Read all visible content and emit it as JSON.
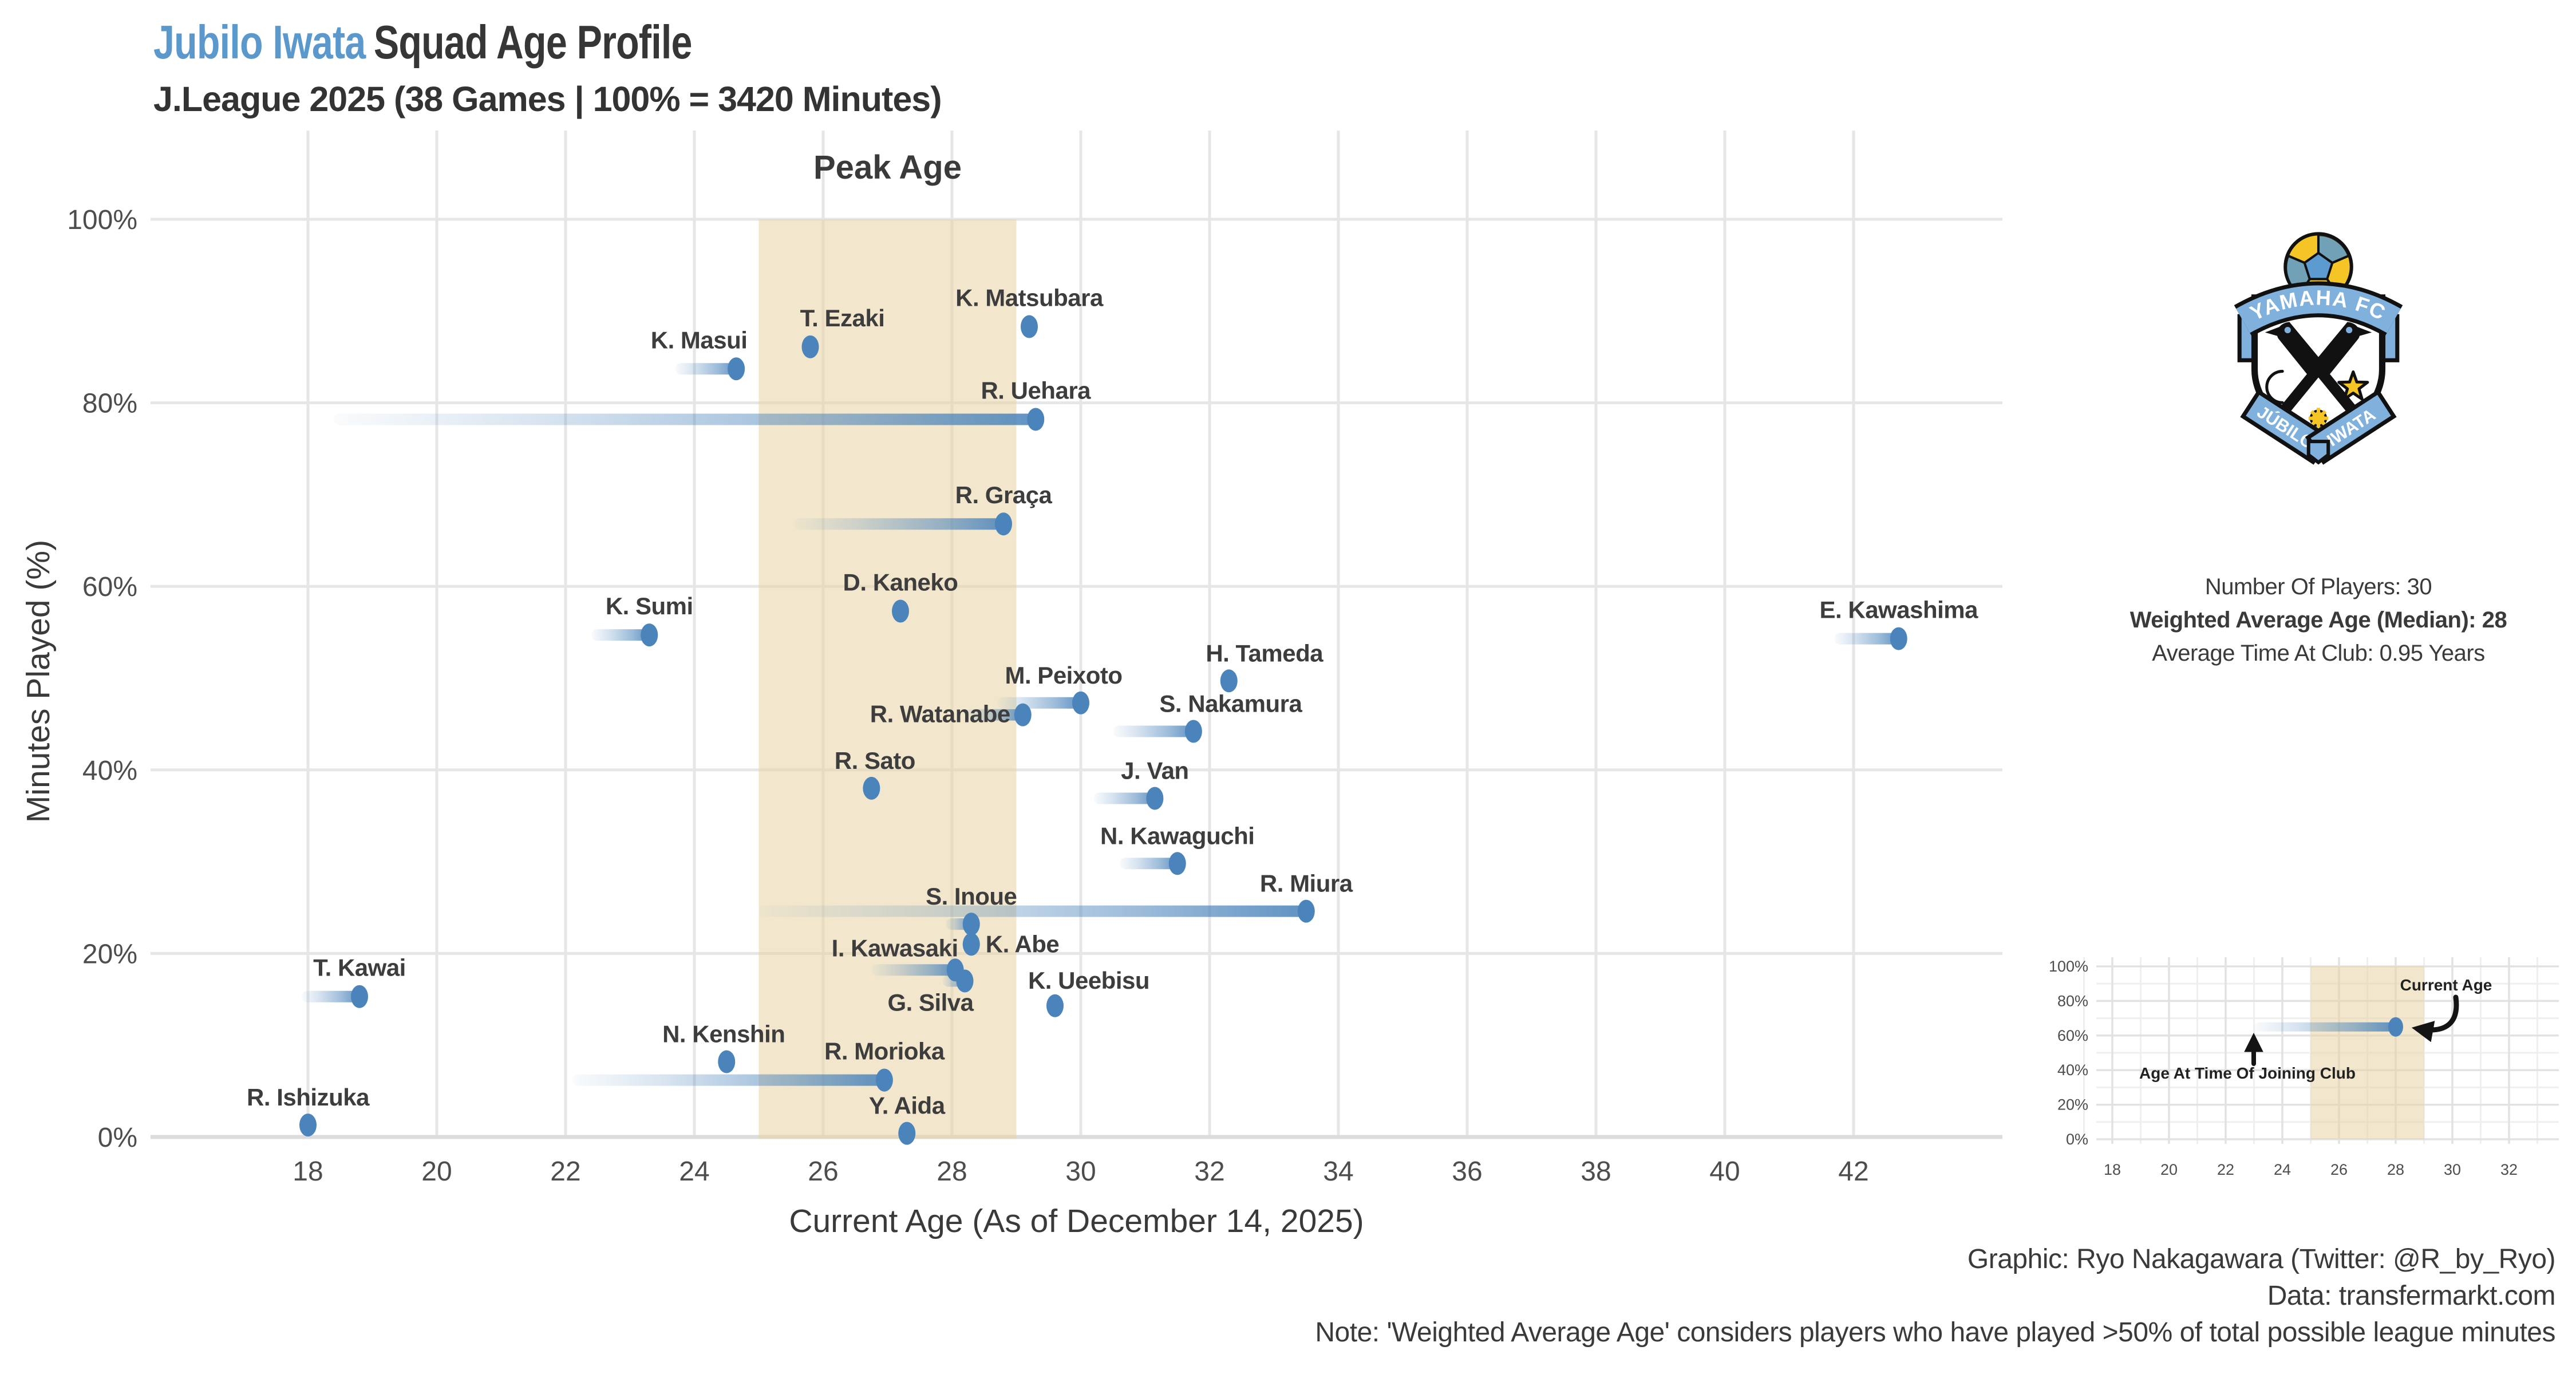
{
  "header": {
    "team": "Jubilo Iwata",
    "title": "Squad Age Profile",
    "subtitle": "J.League 2025 (38 Games | 100% = 3420 Minutes)"
  },
  "crest": {
    "top_banner": "YAMAHA FC",
    "ribbon_left": "JÚBILO",
    "ribbon_right": "IWATA"
  },
  "stats": {
    "players": "Number Of Players: 30",
    "avg_age": "Weighted Average Age (Median): 28",
    "avg_time": "Average Time At Club: 0.95 Years"
  },
  "footer": {
    "credit": "Graphic: Ryo Nakagawara (Twitter: @R_by_Ryo)",
    "source": "Data: transfermarkt.com",
    "note": "Note: 'Weighted Average Age' considers players who have played >50% of total possible league minutes"
  },
  "chart_data": {
    "type": "scatter",
    "title": "Jubilo Iwata Squad Age Profile",
    "xlabel": "Current Age (As of December 14, 2025)",
    "ylabel": "Minutes Played (%)",
    "x_ticks": [
      18,
      20,
      22,
      24,
      26,
      28,
      30,
      32,
      34,
      36,
      38,
      40,
      42
    ],
    "y_ticks": [
      0,
      20,
      40,
      60,
      80,
      100
    ],
    "xlim": [
      15.5,
      44.4
    ],
    "ylim": [
      0,
      103
    ],
    "grid": "major-only",
    "legend": "none",
    "peak_age_band": {
      "label": "Peak Age",
      "from": 25,
      "to": 29
    },
    "colors": {
      "dot": "#4b84bb",
      "band": "#e7d3a2",
      "grid": "#e6e6e6",
      "zero_line": "#dcdcdc",
      "title_accent": "#5b99cc"
    },
    "players": [
      {
        "name": "R. Ishizuka",
        "age": 18.0,
        "pct": 1.3,
        "join_age": null,
        "label": {
          "anchor": "middle",
          "ox": 0,
          "oy": -34
        }
      },
      {
        "name": "T. Kawai",
        "age": 18.8,
        "pct": 15.3,
        "join_age": 17.9,
        "label": {
          "anchor": "middle",
          "ox": 0,
          "oy": -36
        }
      },
      {
        "name": "K. Sumi",
        "age": 23.3,
        "pct": 54.7,
        "join_age": 22.4,
        "label": {
          "anchor": "middle",
          "ox": 0,
          "oy": -36
        }
      },
      {
        "name": "N. Kenshin",
        "age": 24.5,
        "pct": 8.2,
        "join_age": null,
        "label": {
          "anchor": "middle",
          "ox": -5,
          "oy": -34
        }
      },
      {
        "name": "K. Masui",
        "age": 24.65,
        "pct": 83.7,
        "join_age": 23.7,
        "label": {
          "anchor": "middle",
          "ox": -65,
          "oy": -36
        }
      },
      {
        "name": "T. Ezaki",
        "age": 25.8,
        "pct": 86.1,
        "join_age": null,
        "label": {
          "anchor": "middle",
          "ox": 56,
          "oy": -36
        }
      },
      {
        "name": "R. Sato",
        "age": 26.75,
        "pct": 38.0,
        "join_age": null,
        "label": {
          "anchor": "middle",
          "ox": 6,
          "oy": -34
        }
      },
      {
        "name": "R. Morioka",
        "age": 26.95,
        "pct": 6.2,
        "join_age": 22.1,
        "label": {
          "anchor": "middle",
          "ox": 0,
          "oy": -36
        }
      },
      {
        "name": "D. Kaneko",
        "age": 27.2,
        "pct": 57.3,
        "join_age": null,
        "label": {
          "anchor": "middle",
          "ox": 0,
          "oy": -36
        }
      },
      {
        "name": "Y. Aida",
        "age": 27.3,
        "pct": 0.4,
        "join_age": null,
        "label": {
          "anchor": "middle",
          "ox": 0,
          "oy": -34
        }
      },
      {
        "name": "I. Kawasaki",
        "age": 28.05,
        "pct": 18.2,
        "join_age": 26.75,
        "label": {
          "anchor": "end",
          "ox": 5,
          "oy": -24
        }
      },
      {
        "name": "G. Silva",
        "age": 28.2,
        "pct": 17.0,
        "join_age": 27.85,
        "label": {
          "anchor": "middle",
          "ox": -60,
          "oy": 52
        }
      },
      {
        "name": "S. Inoue",
        "age": 28.3,
        "pct": 23.2,
        "join_age": 27.9,
        "label": {
          "anchor": "middle",
          "ox": 0,
          "oy": -34
        }
      },
      {
        "name": "K. Abe",
        "age": 28.3,
        "pct": 21.0,
        "join_age": null,
        "label": {
          "anchor": "start",
          "ox": 25,
          "oy": 14
        }
      },
      {
        "name": "R. Graça",
        "age": 28.8,
        "pct": 66.8,
        "join_age": 25.55,
        "label": {
          "anchor": "middle",
          "ox": 0,
          "oy": -36
        }
      },
      {
        "name": "R. Watanabe",
        "age": 29.1,
        "pct": 46.0,
        "join_age": 28.2,
        "label": {
          "anchor": "end",
          "ox": -22,
          "oy": 13
        }
      },
      {
        "name": "K. Matsubara",
        "age": 29.2,
        "pct": 88.3,
        "join_age": null,
        "label": {
          "anchor": "middle",
          "ox": 0,
          "oy": -36
        }
      },
      {
        "name": "R. Uehara",
        "age": 29.3,
        "pct": 78.2,
        "join_age": 18.4,
        "label": {
          "anchor": "middle",
          "ox": 0,
          "oy": -36
        }
      },
      {
        "name": "K. Ueebisu",
        "age": 29.6,
        "pct": 14.3,
        "join_age": null,
        "label": {
          "anchor": "middle",
          "ox": 59,
          "oy": -30
        }
      },
      {
        "name": "M. Peixoto",
        "age": 30.0,
        "pct": 47.3,
        "join_age": 28.7,
        "label": {
          "anchor": "middle",
          "ox": -30,
          "oy": -34
        }
      },
      {
        "name": "J. Van",
        "age": 31.15,
        "pct": 36.9,
        "join_age": 30.2,
        "label": {
          "anchor": "middle",
          "ox": 0,
          "oy": -34
        }
      },
      {
        "name": "N. Kawaguchi",
        "age": 31.5,
        "pct": 29.8,
        "join_age": 30.6,
        "label": {
          "anchor": "middle",
          "ox": 0,
          "oy": -34
        }
      },
      {
        "name": "S. Nakamura",
        "age": 31.75,
        "pct": 44.2,
        "join_age": 30.5,
        "label": {
          "anchor": "middle",
          "ox": 65,
          "oy": -34
        }
      },
      {
        "name": "H. Tameda",
        "age": 32.3,
        "pct": 49.7,
        "join_age": null,
        "label": {
          "anchor": "middle",
          "ox": 62,
          "oy": -34
        }
      },
      {
        "name": "R. Miura",
        "age": 33.5,
        "pct": 24.6,
        "join_age": 25.0,
        "label": {
          "anchor": "middle",
          "ox": 0,
          "oy": -34
        }
      },
      {
        "name": "E. Kawashima",
        "age": 42.7,
        "pct": 54.3,
        "join_age": 41.7,
        "label": {
          "anchor": "middle",
          "ox": 0,
          "oy": -36
        }
      }
    ]
  },
  "inset": {
    "x_ticks": [
      18,
      20,
      22,
      24,
      26,
      28,
      30,
      32
    ],
    "y_ticks": [
      0,
      20,
      40,
      60,
      80,
      100
    ],
    "band": {
      "from": 25,
      "to": 29
    },
    "demo_player": {
      "age": 28,
      "pct": 65,
      "join_age": 23
    },
    "annotations": {
      "current_age": "Current Age",
      "join_age": "Age At Time Of Joining Club"
    }
  }
}
